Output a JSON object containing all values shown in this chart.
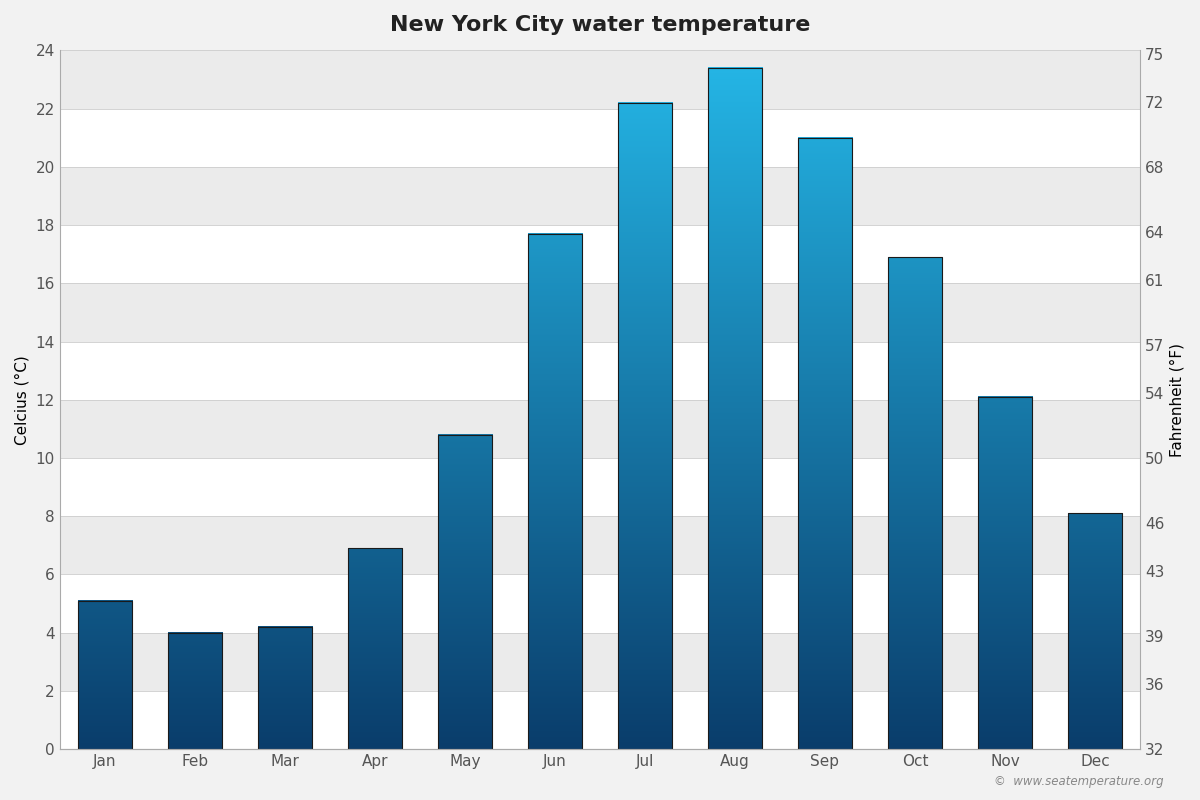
{
  "title": "New York City water temperature",
  "months": [
    "Jan",
    "Feb",
    "Mar",
    "Apr",
    "May",
    "Jun",
    "Jul",
    "Aug",
    "Sep",
    "Oct",
    "Nov",
    "Dec"
  ],
  "celsius_values": [
    5.1,
    4.0,
    4.2,
    6.9,
    10.8,
    17.7,
    22.2,
    23.4,
    21.0,
    16.9,
    12.1,
    8.1
  ],
  "ylabel_left": "Celcius (°C)",
  "ylabel_right": "Fahrenheit (°F)",
  "ylim_celsius": [
    0,
    24
  ],
  "yticks_celsius": [
    0,
    2,
    4,
    6,
    8,
    10,
    12,
    14,
    16,
    18,
    20,
    22,
    24
  ],
  "yticks_fahrenheit": [
    32,
    36,
    39,
    43,
    46,
    50,
    54,
    57,
    61,
    64,
    68,
    72,
    75
  ],
  "background_color": "#f2f2f2",
  "plot_bg_white": "#ffffff",
  "plot_bg_gray": "#ebebeb",
  "bar_color_bottom": "#0a3d6b",
  "bar_color_top": "#25b8e8",
  "watermark": "©  www.seatemperature.org",
  "title_fontsize": 16,
  "label_fontsize": 11,
  "bar_width": 0.6
}
